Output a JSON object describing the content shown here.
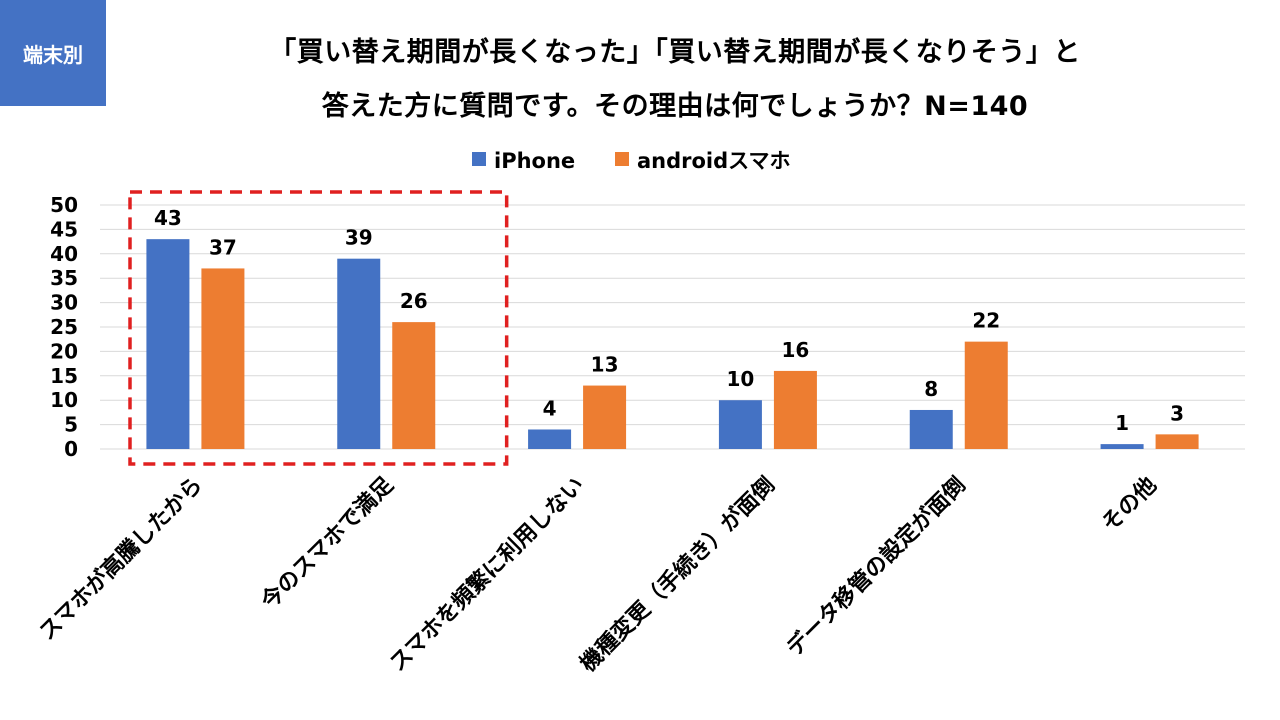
{
  "header": {
    "tag": "端末別",
    "title_line1": "「買い替え期間が長くなった」「買い替え期間が長くなりそう」と",
    "title_line2": "答えた方に質問です。その理由は何でしょうか？N=140"
  },
  "colors": {
    "iphone": "#4472c4",
    "android": "#ed7d31",
    "highlight": "#e02020",
    "grid": "#d9d9d9",
    "tag_bg": "#4472c4"
  },
  "chart_data": {
    "type": "bar",
    "categories": [
      "スマホが高騰したから",
      "今のスマホで満足",
      "スマホを頻繁に利用しない",
      "機種変更（手続き）が面倒",
      "データ移管の設定が面倒",
      "その他"
    ],
    "series": [
      {
        "name": "iPhone",
        "values": [
          43,
          39,
          4,
          10,
          8,
          1
        ]
      },
      {
        "name": "androidスマホ",
        "values": [
          37,
          26,
          13,
          16,
          22,
          3
        ]
      }
    ],
    "ylim": [
      0,
      50
    ],
    "yticks": [
      0,
      5,
      10,
      15,
      20,
      25,
      30,
      35,
      40,
      45,
      50
    ],
    "grid": true,
    "legend": "top-center",
    "highlight_categories": [
      0,
      1
    ]
  }
}
